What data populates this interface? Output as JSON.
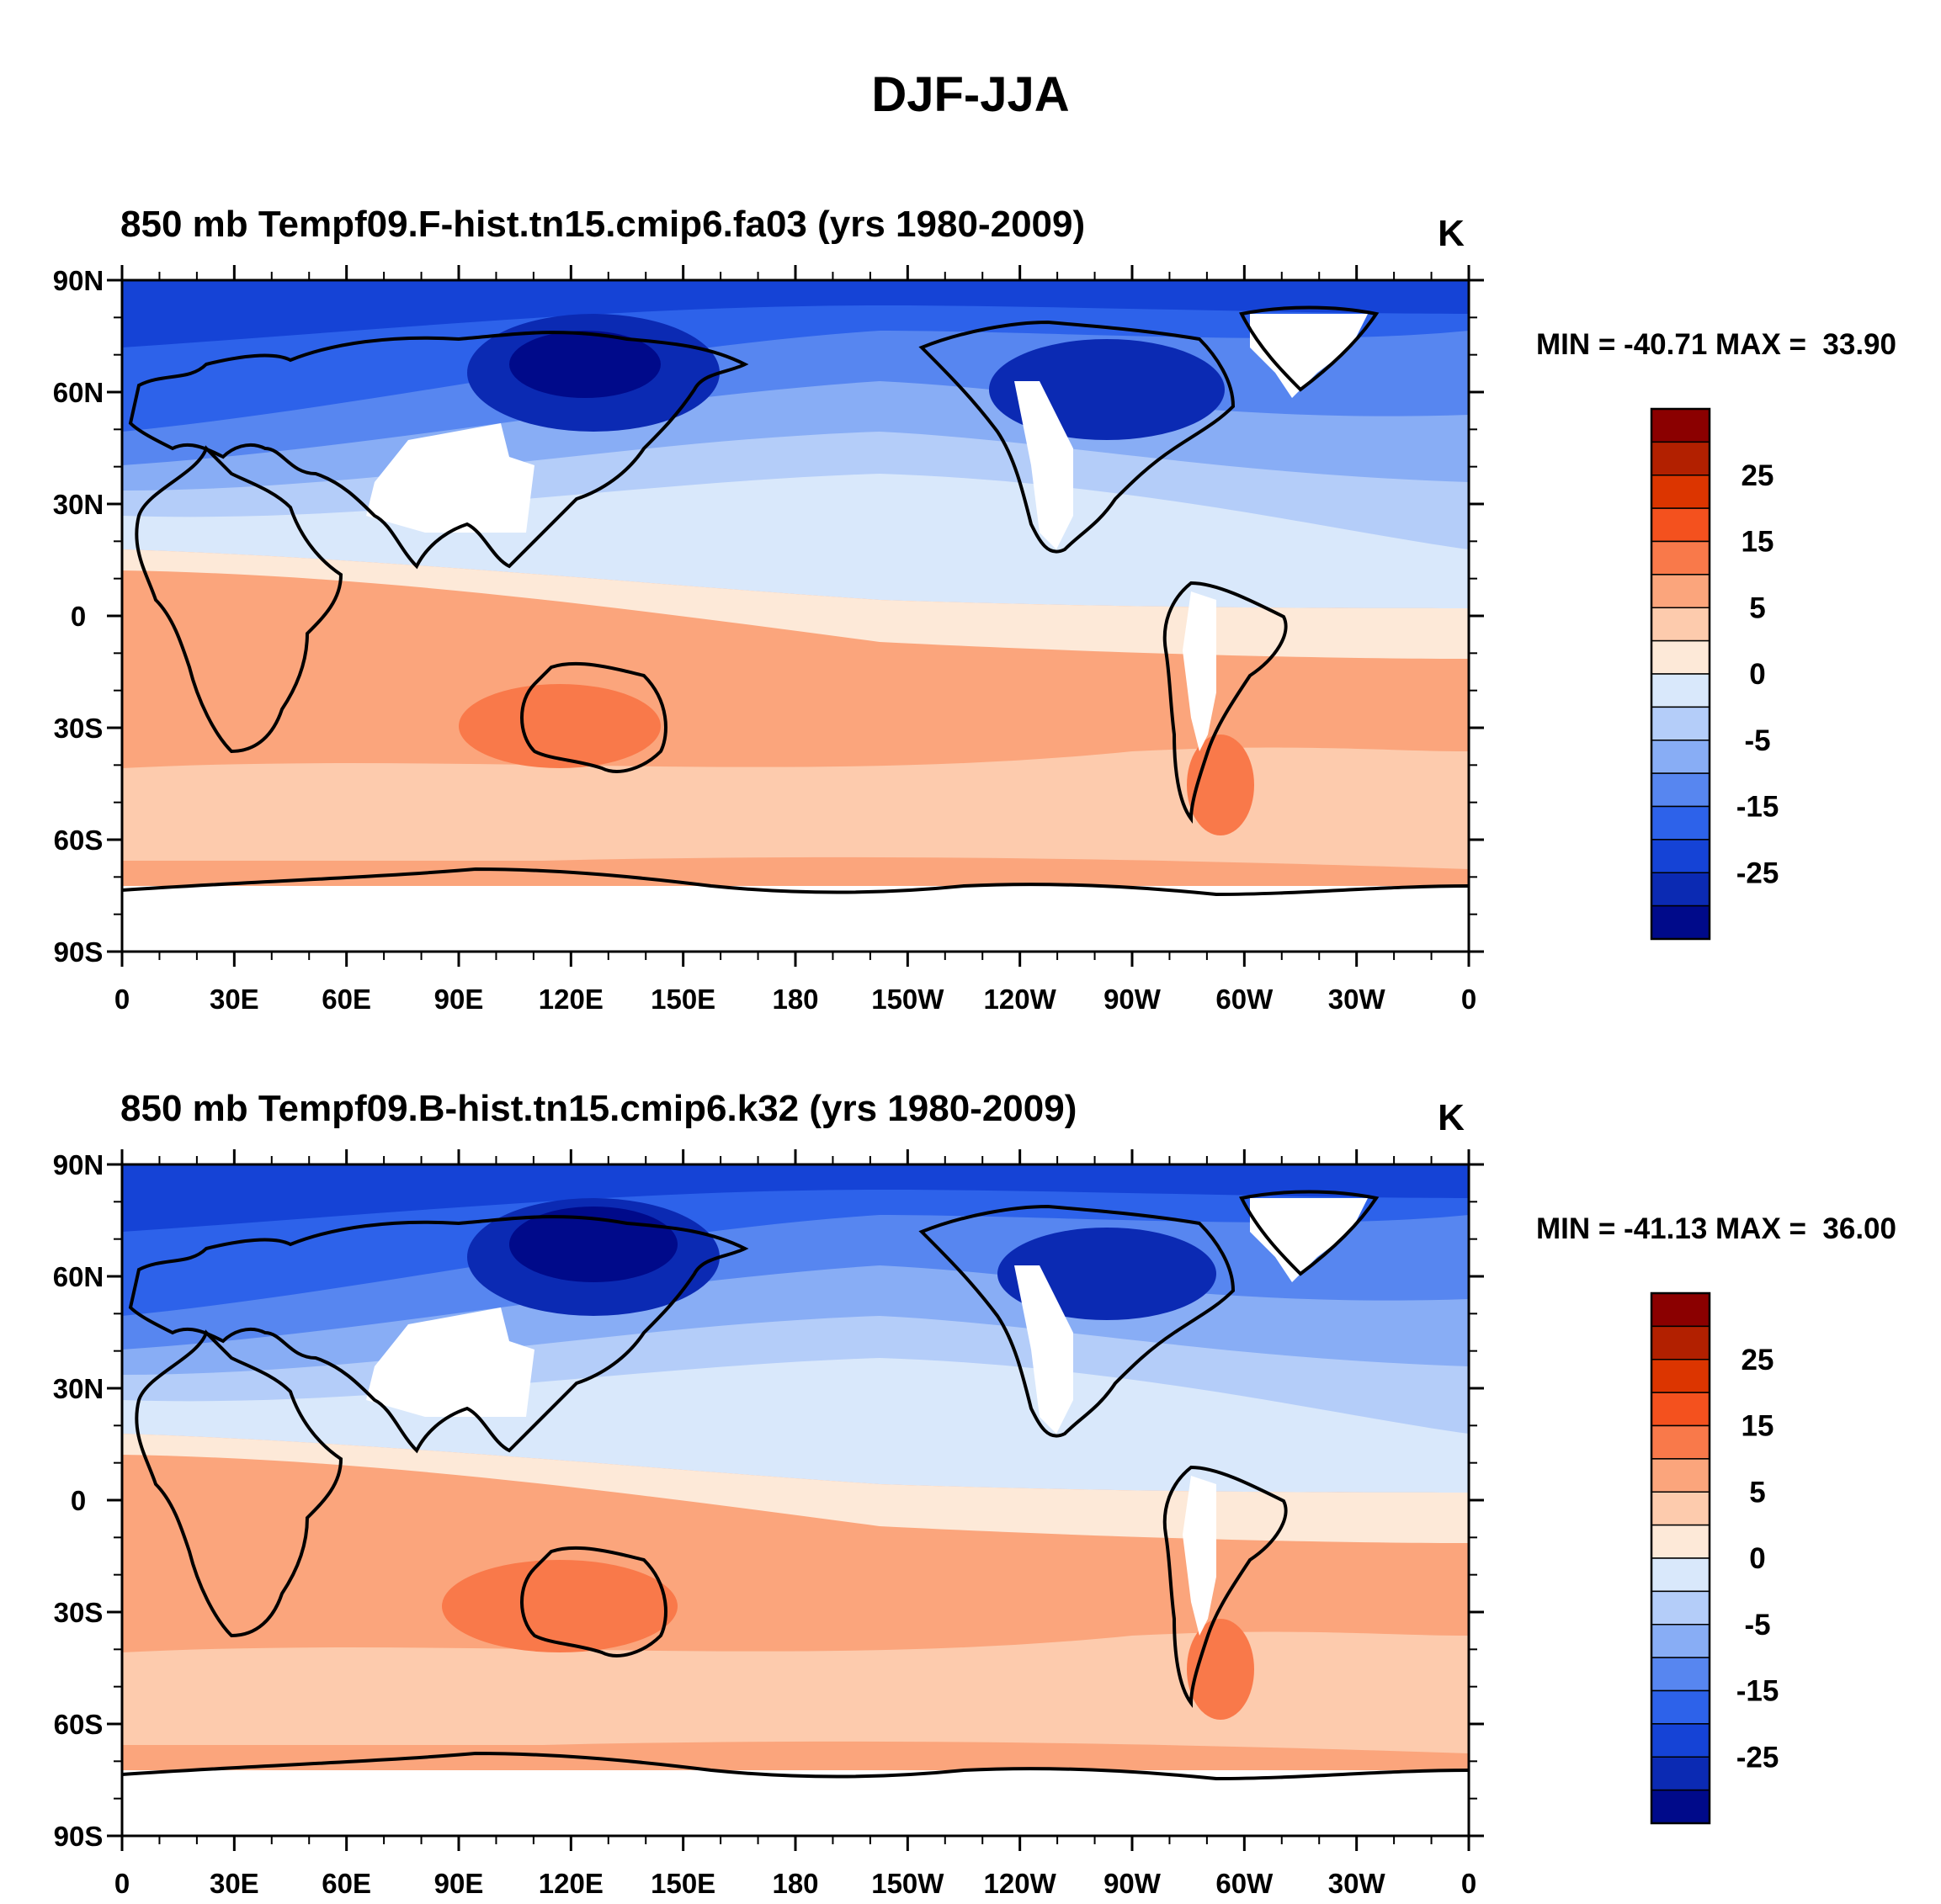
{
  "figure_title": "DJF-JJA",
  "axes": {
    "lat_labels": [
      "90N",
      "60N",
      "30N",
      "0",
      "30S",
      "60S",
      "90S"
    ],
    "lon_labels": [
      "0",
      "30E",
      "60E",
      "90E",
      "120E",
      "150E",
      "180",
      "150W",
      "120W",
      "90W",
      "60W",
      "30W",
      "0"
    ]
  },
  "colorbar": {
    "labels": [
      "25",
      "15",
      "5",
      "0",
      "-5",
      "-15",
      "-25"
    ],
    "colors": [
      "#8b0000",
      "#b22000",
      "#dc3500",
      "#f4511e",
      "#f9794a",
      "#fba57c",
      "#fdcbad",
      "#fde9d8",
      "#d9e8fb",
      "#b4cdf9",
      "#88adf5",
      "#5786f0",
      "#2d62ea",
      "#1543d6",
      "#0b2ab3",
      "#000a8a"
    ]
  },
  "panels": [
    {
      "title": "850 mb Tempf09.F-hist.tn15.cmip6.fa03 (yrs 1980-2009)",
      "units": "K",
      "stats": "MIN = -40.71 MAX =  33.90"
    },
    {
      "title": "850 mb Tempf09.B-hist.tn15.cmip6.k32 (yrs 1980-2009)",
      "units": "K",
      "stats": "MIN = -41.13 MAX =  36.00"
    }
  ]
}
